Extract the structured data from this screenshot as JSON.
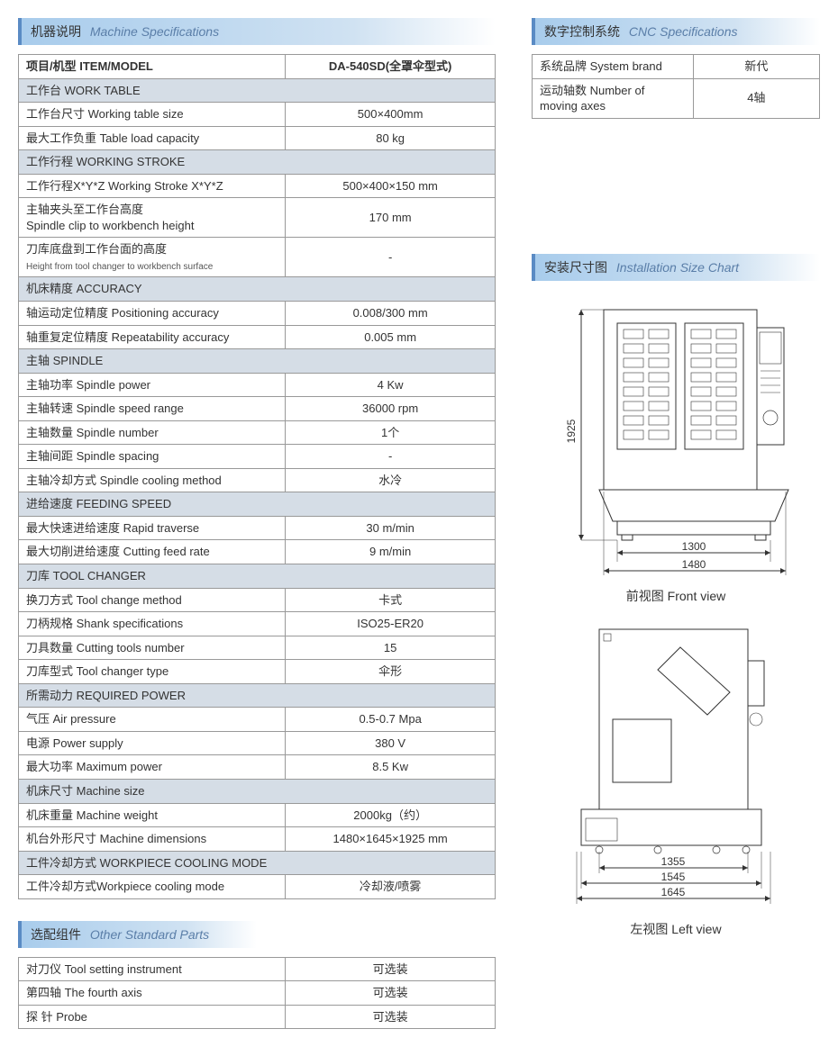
{
  "machineSpec": {
    "header_zh": "机器说明",
    "header_en": "Machine Specifications",
    "head_item": "项目/机型 ITEM/MODEL",
    "head_model": "DA-540SD(全罩伞型式)",
    "col_widths": {
      "label": "56%",
      "value": "44%"
    },
    "colors": {
      "header_bg_start": "#a8ccec",
      "header_bg_end": "#ffffff",
      "header_border": "#5a8bc4",
      "section_row_bg": "#d5dde6",
      "border": "#999999",
      "text": "#333333"
    },
    "sections": [
      {
        "title": "工作台 WORK TABLE",
        "rows": [
          {
            "k": "工作台尺寸 Working table size",
            "v": "500×400mm"
          },
          {
            "k": "最大工作负重 Table load capacity",
            "v": "80 kg"
          }
        ]
      },
      {
        "title": "工作行程 WORKING STROKE",
        "rows": [
          {
            "k": "工作行程X*Y*Z Working Stroke X*Y*Z",
            "v": "500×400×150 mm"
          },
          {
            "k": "主轴夹头至工作台高度\nSpindle clip to workbench height",
            "v": "170 mm"
          },
          {
            "k": "刀库底盘到工作台面的高度",
            "ks": "Height from tool changer to workbench surface",
            "v": "-"
          }
        ]
      },
      {
        "title": "机床精度 ACCURACY",
        "rows": [
          {
            "k": "轴运动定位精度 Positioning accuracy",
            "v": "0.008/300 mm"
          },
          {
            "k": "轴重复定位精度 Repeatability accuracy",
            "v": "0.005 mm"
          }
        ]
      },
      {
        "title": "主轴 SPINDLE",
        "rows": [
          {
            "k": "主轴功率 Spindle power",
            "v": "4 Kw"
          },
          {
            "k": "主轴转速 Spindle speed range",
            "v": "36000 rpm"
          },
          {
            "k": "主轴数量 Spindle number",
            "v": "1个"
          },
          {
            "k": "主轴间距 Spindle spacing",
            "v": "-"
          },
          {
            "k": "主轴冷却方式 Spindle cooling method",
            "v": "水冷"
          }
        ]
      },
      {
        "title": "进给速度 FEEDING SPEED",
        "rows": [
          {
            "k": "最大快速进给速度 Rapid traverse",
            "v": "30 m/min"
          },
          {
            "k": "最大切削进给速度 Cutting feed rate",
            "v": "9 m/min"
          }
        ]
      },
      {
        "title": "刀库 TOOL CHANGER",
        "rows": [
          {
            "k": "换刀方式 Tool change method",
            "v": "卡式"
          },
          {
            "k": "刀柄规格 Shank specifications",
            "v": "ISO25-ER20"
          },
          {
            "k": "刀具数量 Cutting tools number",
            "v": "15"
          },
          {
            "k": "刀库型式 Tool changer type",
            "v": "伞形"
          }
        ]
      },
      {
        "title": "所需动力 REQUIRED POWER",
        "rows": [
          {
            "k": "气压 Air pressure",
            "v": "0.5-0.7 Mpa"
          },
          {
            "k": "电源 Power supply",
            "v": "380 V"
          },
          {
            "k": "最大功率 Maximum power",
            "v": "8.5 Kw"
          }
        ]
      },
      {
        "title": "机床尺寸 Machine size",
        "rows": [
          {
            "k": "机床重量 Machine weight",
            "v": "2000kg（约）"
          },
          {
            "k": "机台外形尺寸 Machine dimensions",
            "v": "1480×1645×1925 mm"
          }
        ]
      },
      {
        "title": "工件冷却方式 WORKPIECE COOLING MODE",
        "rows": [
          {
            "k": "工件冷却方式Workpiece cooling mode",
            "v": "冷却液/喷雾"
          }
        ]
      }
    ]
  },
  "otherParts": {
    "header_zh": "选配组件",
    "header_en": "Other Standard Parts",
    "rows": [
      {
        "k": "对刀仪 Tool setting instrument",
        "v": "可选装"
      },
      {
        "k": "第四轴 The fourth axis",
        "v": "可选装"
      },
      {
        "k": "探  针 Probe",
        "v": "可选装"
      }
    ]
  },
  "cncSpec": {
    "header_zh": "数字控制系统",
    "header_en": "CNC Specifications",
    "rows": [
      {
        "k": "系统品牌 System brand",
        "v": "新代"
      },
      {
        "k": "运动轴数 Number of moving axes",
        "v": "4轴"
      }
    ]
  },
  "installChart": {
    "header_zh": "安装尺寸图",
    "header_en": "Installation Size Chart",
    "front_label": "前视图  Front view",
    "left_label": "左视图  Left view",
    "stroke": "#333333",
    "stroke_width": 1,
    "fill": "none",
    "text_color": "#333333",
    "font_size": 12,
    "front": {
      "height": "1925",
      "width_inner": "1300",
      "width_outer": "1480"
    },
    "left": {
      "w1": "1355",
      "w2": "1545",
      "w3": "1645"
    }
  }
}
